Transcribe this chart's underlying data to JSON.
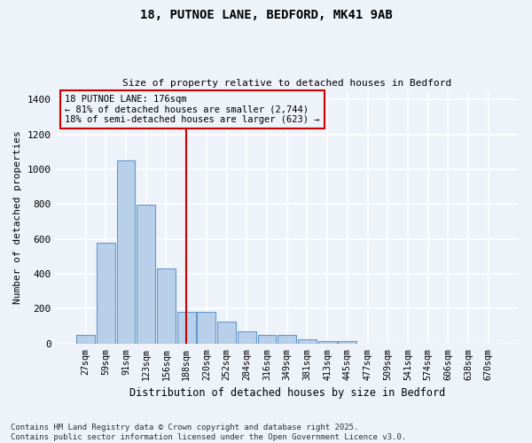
{
  "title1": "18, PUTNOE LANE, BEDFORD, MK41 9AB",
  "title2": "Size of property relative to detached houses in Bedford",
  "xlabel": "Distribution of detached houses by size in Bedford",
  "ylabel": "Number of detached properties",
  "categories": [
    "27sqm",
    "59sqm",
    "91sqm",
    "123sqm",
    "156sqm",
    "188sqm",
    "220sqm",
    "252sqm",
    "284sqm",
    "316sqm",
    "349sqm",
    "381sqm",
    "413sqm",
    "445sqm",
    "477sqm",
    "509sqm",
    "541sqm",
    "574sqm",
    "606sqm",
    "638sqm",
    "670sqm"
  ],
  "values": [
    50,
    580,
    1050,
    795,
    430,
    182,
    182,
    125,
    70,
    50,
    50,
    22,
    15,
    12,
    0,
    0,
    0,
    0,
    0,
    0,
    0
  ],
  "bar_color": "#b8d0ea",
  "bar_edge_color": "#6699cc",
  "vline_x": 5.0,
  "vline_color": "#cc0000",
  "annotation_text": "18 PUTNOE LANE: 176sqm\n← 81% of detached houses are smaller (2,744)\n18% of semi-detached houses are larger (623) →",
  "annotation_box_color": "#cc0000",
  "ylim": [
    0,
    1450
  ],
  "yticks": [
    0,
    200,
    400,
    600,
    800,
    1000,
    1200,
    1400
  ],
  "bg_color": "#eef2f9",
  "grid_color": "#ffffff",
  "footer": "Contains HM Land Registry data © Crown copyright and database right 2025.\nContains public sector information licensed under the Open Government Licence v3.0."
}
